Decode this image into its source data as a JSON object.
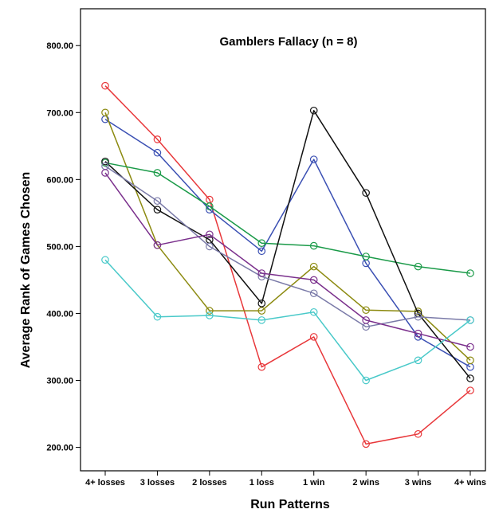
{
  "chart_data": {
    "type": "line",
    "title": "Gamblers Fallacy (n = 8)",
    "xlabel": "Run Patterns",
    "ylabel": "Average Rank of Games Chosen",
    "categories": [
      "4+ losses",
      "3 losses",
      "2 losses",
      "1 loss",
      "1 win",
      "2 wins",
      "3 wins",
      "4+ wins"
    ],
    "ylim": [
      165,
      855
    ],
    "yticks": [
      200,
      300,
      400,
      500,
      600,
      700,
      800
    ],
    "ytick_labels": [
      "200.00",
      "300.00",
      "400.00",
      "500.00",
      "600.00",
      "700.00",
      "800.00"
    ],
    "grid": false,
    "legend": "none",
    "marker": "open-circle",
    "series": [
      {
        "color": "#e8373a",
        "values": [
          740,
          660,
          570,
          320,
          365,
          205,
          220,
          285
        ]
      },
      {
        "color": "#3a4fb3",
        "values": [
          690,
          640,
          555,
          493,
          630,
          475,
          365,
          320
        ]
      },
      {
        "color": "#8c8a10",
        "values": [
          700,
          502,
          404,
          404,
          470,
          405,
          403,
          330
        ]
      },
      {
        "color": "#1a9a48",
        "values": [
          625,
          610,
          560,
          505,
          501,
          485,
          470,
          460
        ]
      },
      {
        "color": "#111111",
        "values": [
          627,
          555,
          510,
          415,
          703,
          580,
          400,
          303
        ]
      },
      {
        "color": "#7a7aa8",
        "values": [
          620,
          568,
          500,
          455,
          430,
          380,
          395,
          390
        ]
      },
      {
        "color": "#7a2f8c",
        "values": [
          610,
          502,
          518,
          460,
          450,
          390,
          370,
          350
        ]
      },
      {
        "color": "#49c9c9",
        "values": [
          480,
          395,
          397,
          390,
          402,
          300,
          330,
          390
        ]
      }
    ]
  }
}
